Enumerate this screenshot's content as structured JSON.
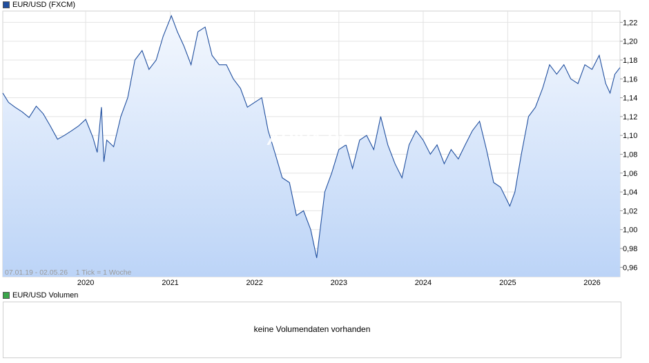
{
  "legend_main": {
    "label": "EUR/USD (FXCM)",
    "color": "#1f4e9e"
  },
  "legend_volume": {
    "label": "EUR/USD Volumen",
    "color": "#3aa64a"
  },
  "footer_info": "07.01.19 - 02.05.26    1 Tick = 1 Woche",
  "watermark": "ARIVA.DE",
  "volume_message": "keine Volumendaten vorhanden",
  "chart_data": {
    "type": "area",
    "title": "EUR/USD (FXCM)",
    "xlabel": "",
    "ylabel": "",
    "x_ticks": [
      "2020",
      "2021",
      "2022",
      "2023",
      "2024",
      "2025",
      "2026"
    ],
    "y_ticks": [
      "0,96",
      "0,98",
      "1,00",
      "1,02",
      "1,04",
      "1,06",
      "1,08",
      "1,10",
      "1,12",
      "1,14",
      "1,16",
      "1,18",
      "1,20",
      "1,22"
    ],
    "ylim": [
      0.95,
      1.232
    ],
    "xlim": [
      "2019-01-07",
      "2026-05-02"
    ],
    "grid": true,
    "line_color": "#1f4e9e",
    "fill_top_color": "#f4f8fe",
    "fill_bottom_color": "#bcd4f7",
    "series": [
      {
        "name": "EUR/USD (FXCM)",
        "points": [
          [
            "2019-01-07",
            1.145
          ],
          [
            "2019-02-01",
            1.135
          ],
          [
            "2019-03-01",
            1.13
          ],
          [
            "2019-04-01",
            1.125
          ],
          [
            "2019-05-01",
            1.119
          ],
          [
            "2019-06-01",
            1.131
          ],
          [
            "2019-07-01",
            1.123
          ],
          [
            "2019-08-01",
            1.11
          ],
          [
            "2019-09-01",
            1.096
          ],
          [
            "2019-10-01",
            1.1
          ],
          [
            "2019-11-01",
            1.105
          ],
          [
            "2019-12-01",
            1.11
          ],
          [
            "2020-01-01",
            1.117
          ],
          [
            "2020-02-01",
            1.098
          ],
          [
            "2020-02-20",
            1.082
          ],
          [
            "2020-03-09",
            1.13
          ],
          [
            "2020-03-20",
            1.072
          ],
          [
            "2020-04-01",
            1.095
          ],
          [
            "2020-05-01",
            1.088
          ],
          [
            "2020-06-01",
            1.12
          ],
          [
            "2020-07-01",
            1.14
          ],
          [
            "2020-08-01",
            1.18
          ],
          [
            "2020-09-01",
            1.19
          ],
          [
            "2020-10-01",
            1.17
          ],
          [
            "2020-11-01",
            1.18
          ],
          [
            "2020-12-01",
            1.205
          ],
          [
            "2021-01-06",
            1.227
          ],
          [
            "2021-02-01",
            1.21
          ],
          [
            "2021-03-01",
            1.195
          ],
          [
            "2021-04-01",
            1.175
          ],
          [
            "2021-05-01",
            1.21
          ],
          [
            "2021-06-01",
            1.215
          ],
          [
            "2021-07-01",
            1.185
          ],
          [
            "2021-08-01",
            1.175
          ],
          [
            "2021-09-01",
            1.175
          ],
          [
            "2021-10-01",
            1.16
          ],
          [
            "2021-11-01",
            1.15
          ],
          [
            "2021-12-01",
            1.13
          ],
          [
            "2022-01-01",
            1.135
          ],
          [
            "2022-02-01",
            1.14
          ],
          [
            "2022-03-01",
            1.105
          ],
          [
            "2022-04-01",
            1.08
          ],
          [
            "2022-05-01",
            1.055
          ],
          [
            "2022-06-01",
            1.05
          ],
          [
            "2022-07-01",
            1.015
          ],
          [
            "2022-08-01",
            1.02
          ],
          [
            "2022-09-01",
            1.0
          ],
          [
            "2022-09-27",
            0.97
          ],
          [
            "2022-11-01",
            1.04
          ],
          [
            "2022-12-01",
            1.06
          ],
          [
            "2023-01-01",
            1.085
          ],
          [
            "2023-02-01",
            1.09
          ],
          [
            "2023-03-01",
            1.065
          ],
          [
            "2023-04-01",
            1.095
          ],
          [
            "2023-05-01",
            1.1
          ],
          [
            "2023-06-01",
            1.085
          ],
          [
            "2023-07-01",
            1.12
          ],
          [
            "2023-08-01",
            1.09
          ],
          [
            "2023-09-01",
            1.07
          ],
          [
            "2023-10-01",
            1.055
          ],
          [
            "2023-11-01",
            1.09
          ],
          [
            "2023-12-01",
            1.105
          ],
          [
            "2024-01-01",
            1.095
          ],
          [
            "2024-02-01",
            1.08
          ],
          [
            "2024-03-01",
            1.09
          ],
          [
            "2024-04-01",
            1.07
          ],
          [
            "2024-05-01",
            1.085
          ],
          [
            "2024-06-01",
            1.075
          ],
          [
            "2024-07-01",
            1.09
          ],
          [
            "2024-08-01",
            1.105
          ],
          [
            "2024-09-01",
            1.115
          ],
          [
            "2024-10-01",
            1.085
          ],
          [
            "2024-11-01",
            1.05
          ],
          [
            "2024-12-01",
            1.045
          ],
          [
            "2025-01-10",
            1.025
          ],
          [
            "2025-02-01",
            1.04
          ],
          [
            "2025-03-01",
            1.08
          ],
          [
            "2025-04-01",
            1.12
          ],
          [
            "2025-05-01",
            1.13
          ],
          [
            "2025-06-01",
            1.15
          ],
          [
            "2025-07-01",
            1.175
          ],
          [
            "2025-08-01",
            1.165
          ],
          [
            "2025-09-01",
            1.175
          ],
          [
            "2025-10-01",
            1.16
          ],
          [
            "2025-11-01",
            1.155
          ],
          [
            "2025-12-01",
            1.175
          ],
          [
            "2026-01-01",
            1.17
          ],
          [
            "2026-02-01",
            1.185
          ],
          [
            "2026-03-01",
            1.155
          ],
          [
            "2026-03-20",
            1.145
          ],
          [
            "2026-04-10",
            1.165
          ],
          [
            "2026-05-02",
            1.172
          ]
        ]
      }
    ]
  }
}
